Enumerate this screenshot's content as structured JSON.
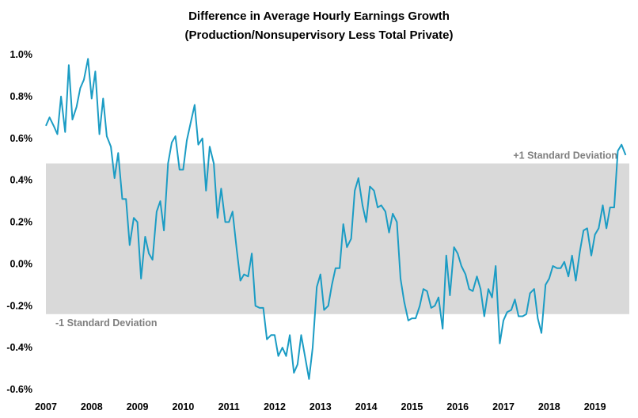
{
  "chart_data": {
    "type": "line",
    "title": "Difference in Average Hourly Earnings Growth",
    "subtitle": "(Production/Nonsupervisory Less Total Private)",
    "xlabel": "",
    "ylabel": "",
    "xlim": [
      2007.0,
      2019.75
    ],
    "ylim": [
      -0.6,
      1.0
    ],
    "y_ticks": [
      "1.0%",
      "0.8%",
      "0.6%",
      "0.4%",
      "0.2%",
      "0.0%",
      "-0.2%",
      "-0.4%",
      "-0.6%"
    ],
    "x_ticks": [
      "2007",
      "2008",
      "2009",
      "2010",
      "2011",
      "2012",
      "2013",
      "2014",
      "2015",
      "2016",
      "2017",
      "2018",
      "2019"
    ],
    "grid": false,
    "band": {
      "upper": 0.48,
      "lower": -0.24,
      "upper_label": "+1 Standard Deviation",
      "lower_label": "-1 Standard Deviation",
      "color": "#d9d9d9"
    },
    "line_color": "#1b9cc4",
    "series": [
      {
        "x": [
          2007.0,
          2007.08,
          2007.17,
          2007.25,
          2007.33,
          2007.42,
          2007.5,
          2007.58,
          2007.67,
          2007.75,
          2007.83,
          2007.92,
          2008.0,
          2008.08,
          2008.17,
          2008.25,
          2008.33,
          2008.42,
          2008.5,
          2008.58,
          2008.67,
          2008.75,
          2008.83,
          2008.92,
          2009.0,
          2009.08,
          2009.17,
          2009.25,
          2009.33,
          2009.42,
          2009.5,
          2009.58,
          2009.67,
          2009.75,
          2009.83,
          2009.92,
          2010.0,
          2010.08,
          2010.17,
          2010.25,
          2010.33,
          2010.42,
          2010.5,
          2010.58,
          2010.67,
          2010.75,
          2010.83,
          2010.92,
          2011.0,
          2011.08,
          2011.17,
          2011.25,
          2011.33,
          2011.42,
          2011.5,
          2011.58,
          2011.67,
          2011.75,
          2011.83,
          2011.92,
          2012.0,
          2012.08,
          2012.17,
          2012.25,
          2012.33,
          2012.42,
          2012.5,
          2012.58,
          2012.67,
          2012.75,
          2012.83,
          2012.92,
          2013.0,
          2013.08,
          2013.17,
          2013.25,
          2013.33,
          2013.42,
          2013.5,
          2013.58,
          2013.67,
          2013.75,
          2013.83,
          2013.92,
          2014.0,
          2014.08,
          2014.17,
          2014.25,
          2014.33,
          2014.42,
          2014.5,
          2014.58,
          2014.67,
          2014.75,
          2014.83,
          2014.92,
          2015.0,
          2015.08,
          2015.17,
          2015.25,
          2015.33,
          2015.42,
          2015.5,
          2015.58,
          2015.67,
          2015.75,
          2015.83,
          2015.92,
          2016.0,
          2016.08,
          2016.17,
          2016.25,
          2016.33,
          2016.42,
          2016.5,
          2016.58,
          2016.67,
          2016.75,
          2016.83,
          2016.92,
          2017.0,
          2017.08,
          2017.17,
          2017.25,
          2017.33,
          2017.42,
          2017.5,
          2017.58,
          2017.67,
          2017.75,
          2017.83,
          2017.92,
          2018.0,
          2018.08,
          2018.17,
          2018.25,
          2018.33,
          2018.42,
          2018.5,
          2018.58,
          2018.67,
          2018.75,
          2018.83,
          2018.92,
          2019.0,
          2019.08,
          2019.17,
          2019.25,
          2019.33,
          2019.42,
          2019.5,
          2019.58,
          2019.67
        ],
        "y": [
          0.66,
          0.7,
          0.66,
          0.62,
          0.8,
          0.63,
          0.95,
          0.69,
          0.75,
          0.84,
          0.88,
          0.98,
          0.79,
          0.92,
          0.62,
          0.79,
          0.61,
          0.56,
          0.41,
          0.53,
          0.31,
          0.31,
          0.09,
          0.22,
          0.2,
          -0.07,
          0.13,
          0.05,
          0.02,
          0.25,
          0.3,
          0.16,
          0.48,
          0.58,
          0.61,
          0.45,
          0.45,
          0.59,
          0.68,
          0.76,
          0.57,
          0.6,
          0.35,
          0.56,
          0.48,
          0.22,
          0.36,
          0.2,
          0.2,
          0.25,
          0.07,
          -0.08,
          -0.05,
          -0.06,
          0.05,
          -0.2,
          -0.21,
          -0.21,
          -0.36,
          -0.34,
          -0.34,
          -0.44,
          -0.4,
          -0.44,
          -0.34,
          -0.52,
          -0.48,
          -0.34,
          -0.45,
          -0.55,
          -0.4,
          -0.11,
          -0.05,
          -0.22,
          -0.2,
          -0.1,
          -0.02,
          -0.02,
          0.19,
          0.08,
          0.12,
          0.35,
          0.41,
          0.28,
          0.2,
          0.37,
          0.35,
          0.27,
          0.28,
          0.25,
          0.15,
          0.24,
          0.2,
          -0.07,
          -0.18,
          -0.27,
          -0.26,
          -0.26,
          -0.2,
          -0.12,
          -0.13,
          -0.21,
          -0.2,
          -0.16,
          -0.31,
          0.04,
          -0.15,
          0.08,
          0.05,
          -0.01,
          -0.05,
          -0.12,
          -0.13,
          -0.06,
          -0.12,
          -0.25,
          -0.12,
          -0.16,
          -0.01,
          -0.38,
          -0.27,
          -0.23,
          -0.22,
          -0.17,
          -0.25,
          -0.25,
          -0.24,
          -0.14,
          -0.12,
          -0.26,
          -0.33,
          -0.1,
          -0.07,
          -0.01,
          -0.02,
          -0.02,
          0.01,
          -0.06,
          0.04,
          -0.08,
          0.06,
          0.16,
          0.17,
          0.04,
          0.14,
          0.17,
          0.28,
          0.17,
          0.27,
          0.27,
          0.54,
          0.57,
          0.52
        ]
      }
    ]
  }
}
